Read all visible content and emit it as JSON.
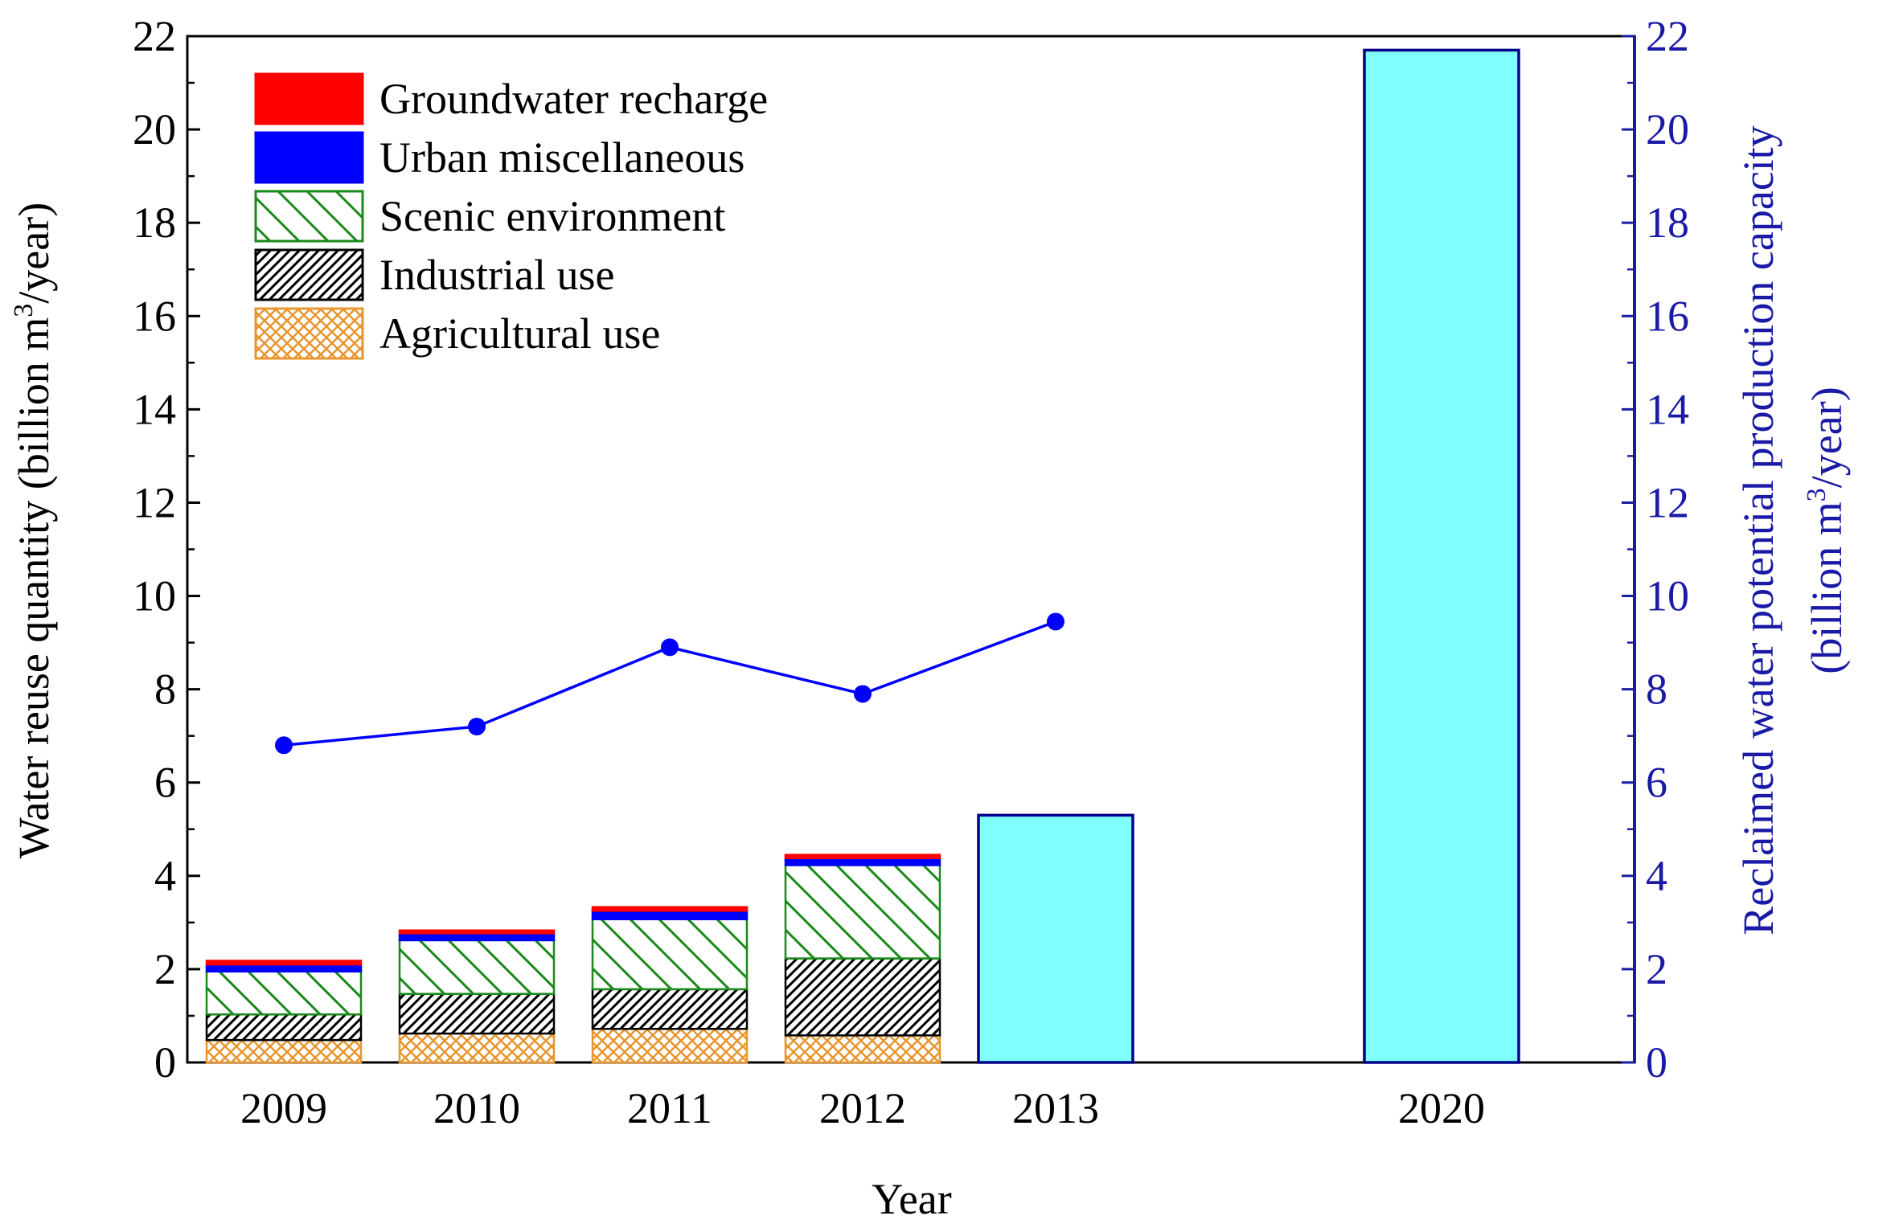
{
  "chart_data": {
    "type": "bar",
    "categories": [
      "2009",
      "2010",
      "2011",
      "2012",
      "2013",
      "2020"
    ],
    "x_positions": [
      2009,
      2010,
      2011,
      2012,
      2013,
      2015
    ],
    "xlabel": "Year",
    "ylabel_left": [
      "Water reuse quantity (billion m",
      "3",
      "/year)"
    ],
    "ylabel_right_line1": "Reclaimed water potential production capacity",
    "ylabel_right_line2": [
      "(billion m",
      "3",
      "/year)"
    ],
    "ylim": [
      0,
      22
    ],
    "yticks": [
      "0",
      "2",
      "4",
      "6",
      "8",
      "10",
      "12",
      "14",
      "16",
      "18",
      "20",
      "22"
    ],
    "legend_position": "top-left",
    "stacked_series": [
      {
        "name": "Agricultural use",
        "color": "#e8962e",
        "pattern": "crosshatch",
        "values": [
          0.48,
          0.62,
          0.72,
          0.58,
          null,
          null
        ]
      },
      {
        "name": "Industrial use",
        "color": "#000000",
        "pattern": "diagonal",
        "values": [
          0.55,
          0.85,
          0.85,
          1.65,
          null,
          null
        ]
      },
      {
        "name": "Scenic environment",
        "color": "#1a8a1a",
        "pattern": "backdiagonal",
        "values": [
          0.92,
          1.15,
          1.5,
          2.0,
          null,
          null
        ]
      },
      {
        "name": "Urban miscellaneous",
        "color": "#0000ff",
        "pattern": "solid",
        "values": [
          0.15,
          0.15,
          0.18,
          0.15,
          null,
          null
        ]
      },
      {
        "name": "Groundwater recharge",
        "color": "#ff0000",
        "pattern": "solid",
        "values": [
          0.08,
          0.06,
          0.08,
          0.07,
          null,
          null
        ]
      }
    ],
    "capacity_series": {
      "color": "#80ffff",
      "edge_color": "#00008b",
      "values": [
        null,
        null,
        null,
        null,
        5.3,
        21.7
      ]
    },
    "line_series": {
      "color": "#0000ff",
      "values": [
        6.8,
        7.2,
        8.9,
        7.9,
        9.45,
        null
      ]
    },
    "right_axis_color": "#1a1aa6"
  }
}
